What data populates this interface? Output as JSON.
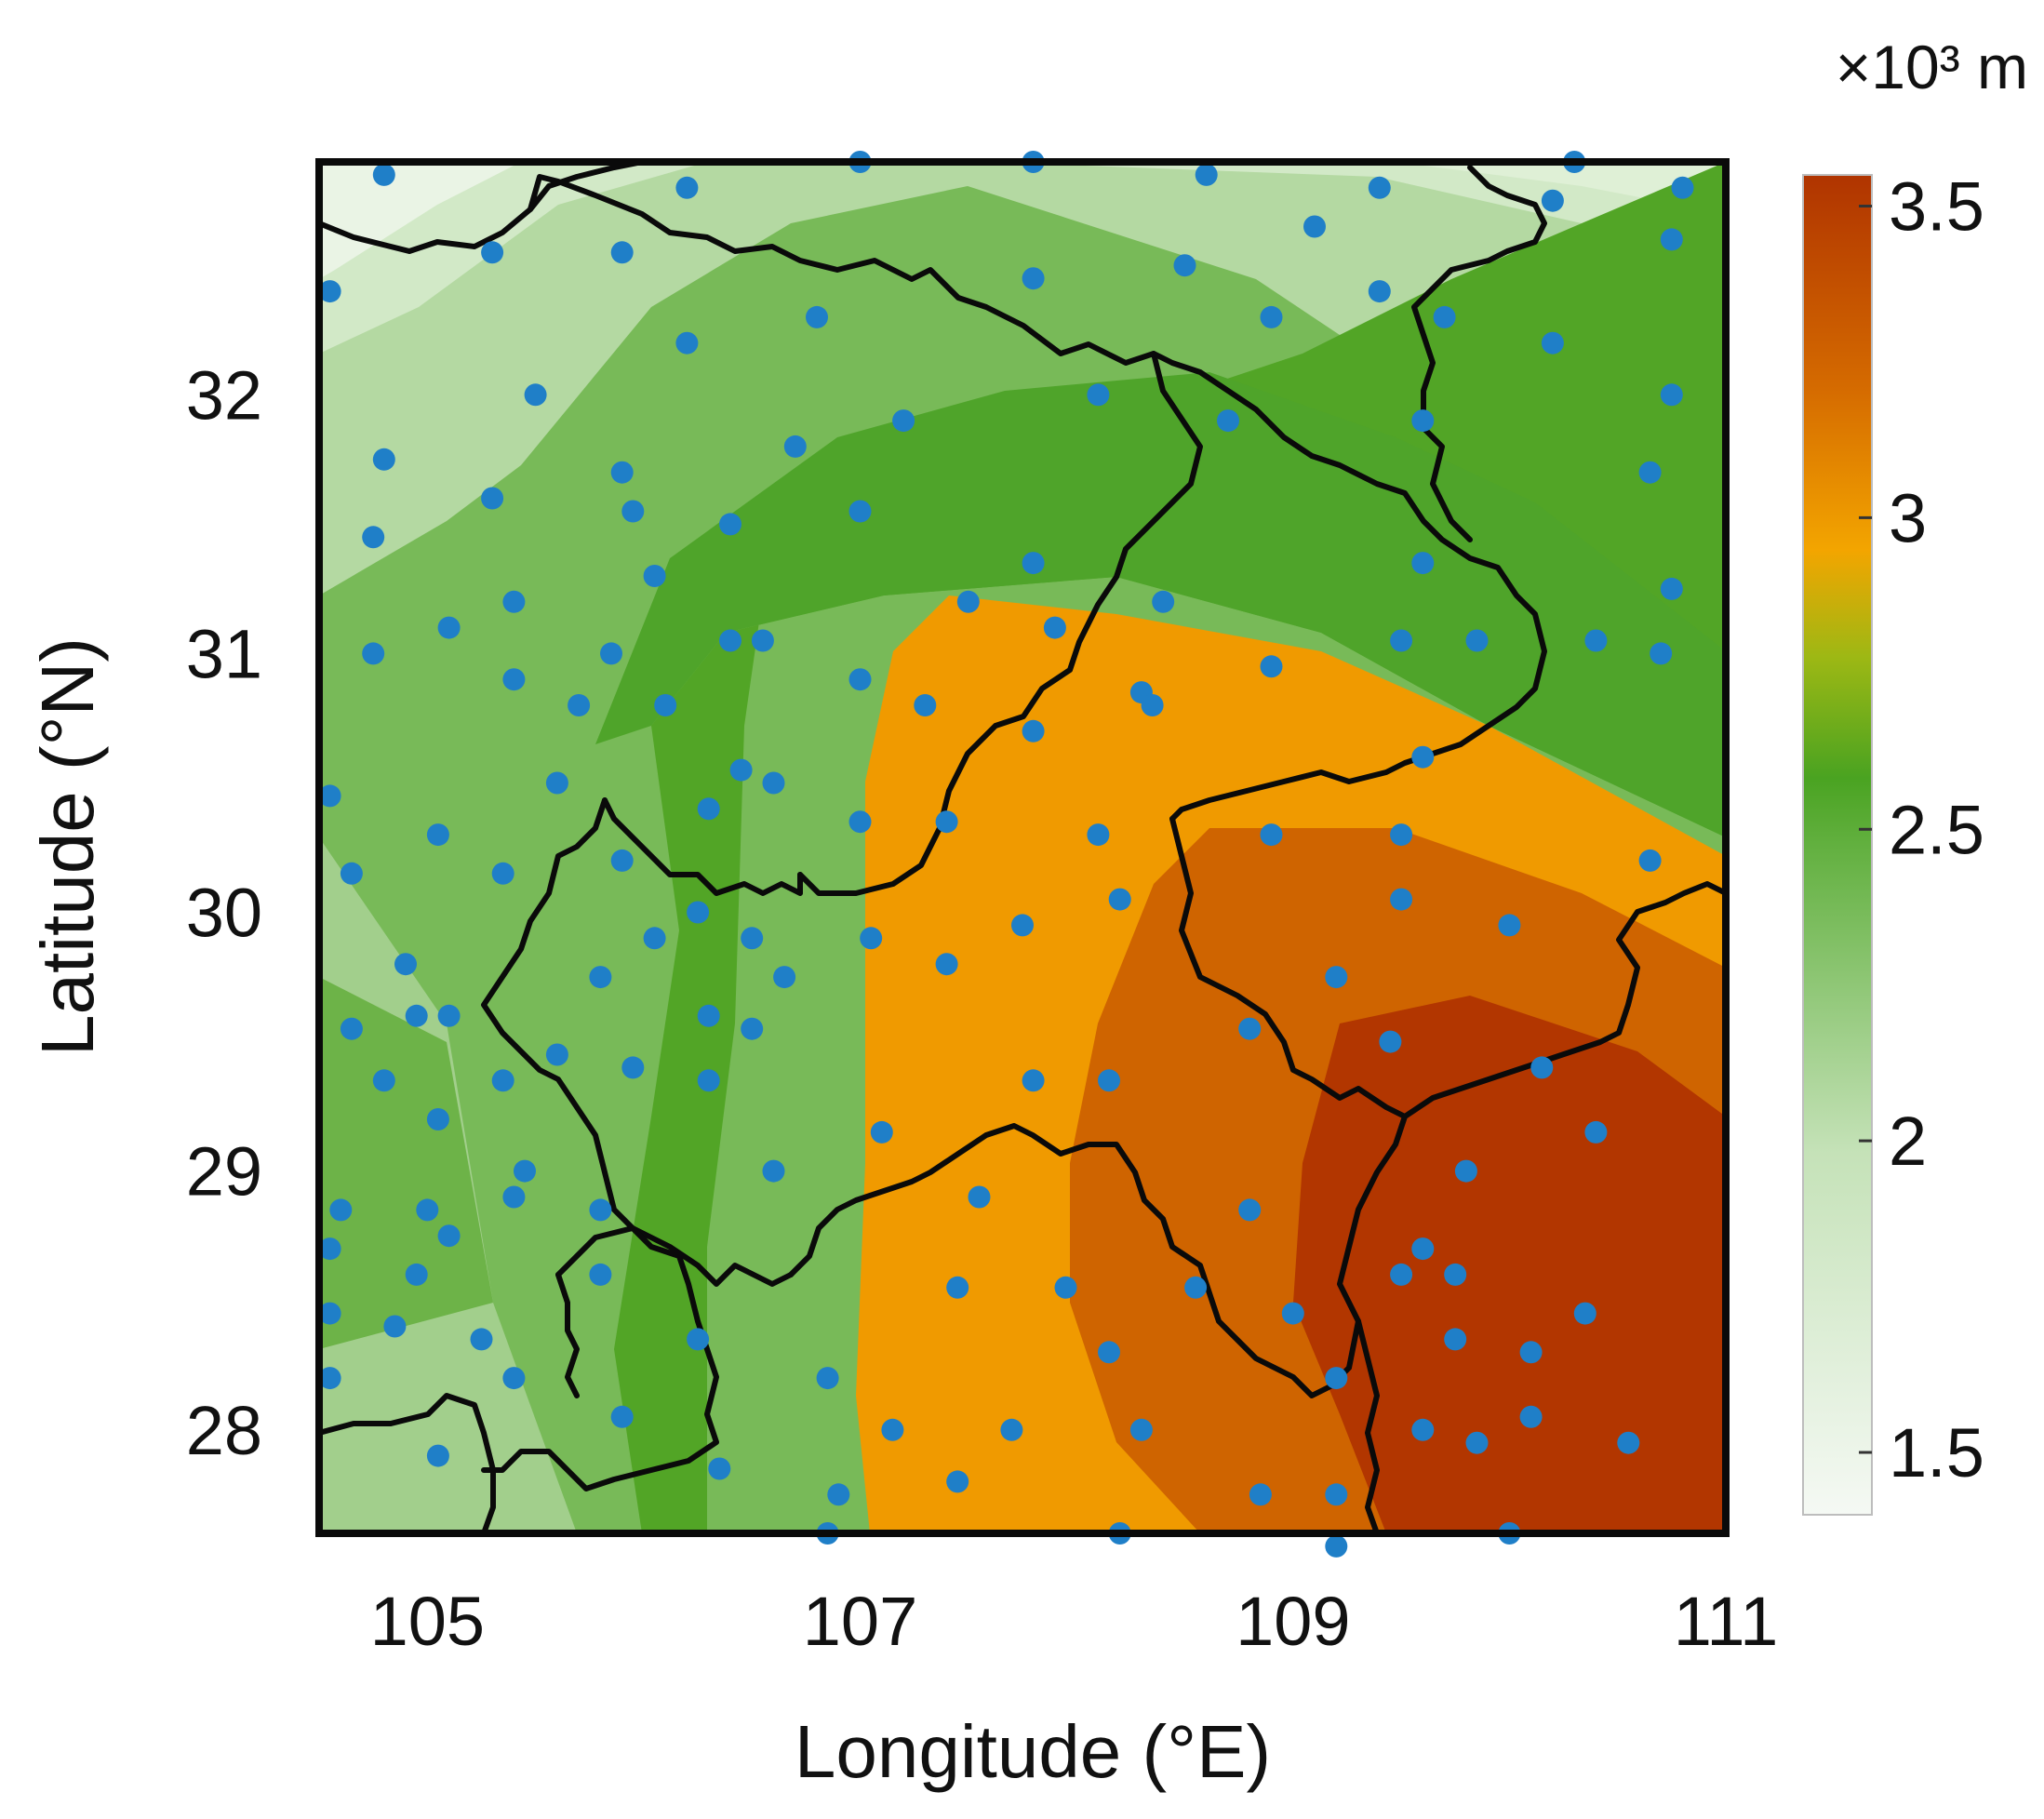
{
  "map": {
    "x_axis_label": "Longitude (°E)",
    "y_axis_label": "Latitude (°N)",
    "x_ticks": [
      "105",
      "107",
      "109",
      "111"
    ],
    "y_ticks": [
      "28",
      "29",
      "30",
      "31",
      "32"
    ],
    "lon_range": [
      104.5,
      111.0
    ],
    "lat_range": [
      27.6,
      32.9
    ],
    "x_tick_values": [
      105,
      107,
      109,
      111
    ],
    "y_tick_values": [
      28,
      29,
      30,
      31,
      32
    ]
  },
  "colorbar": {
    "unit": "×10³ m",
    "ticks": [
      "1.5",
      "2",
      "2.5",
      "3",
      "3.5"
    ],
    "tick_values": [
      1.5,
      2.0,
      2.5,
      3.0,
      3.5
    ],
    "range": [
      1.4,
      3.55
    ],
    "colors": [
      "#f4f8f3",
      "#c7e3bc",
      "#6fb64f",
      "#4fa325",
      "#f39a00",
      "#cc6300",
      "#b63800"
    ]
  },
  "stations": [
    [
      104.8,
      32.85
    ],
    [
      106.2,
      32.8
    ],
    [
      107.0,
      32.9
    ],
    [
      107.8,
      32.9
    ],
    [
      108.6,
      32.85
    ],
    [
      109.4,
      32.8
    ],
    [
      110.3,
      32.9
    ],
    [
      110.8,
      32.8
    ],
    [
      105.3,
      32.55
    ],
    [
      105.9,
      32.55
    ],
    [
      109.1,
      32.65
    ],
    [
      110.2,
      32.75
    ],
    [
      110.75,
      32.6
    ],
    [
      104.55,
      32.4
    ],
    [
      106.8,
      32.3
    ],
    [
      107.8,
      32.45
    ],
    [
      108.5,
      32.5
    ],
    [
      108.9,
      32.3
    ],
    [
      109.4,
      32.4
    ],
    [
      109.7,
      32.3
    ],
    [
      110.2,
      32.2
    ],
    [
      106.2,
      32.2
    ],
    [
      108.1,
      32.0
    ],
    [
      110.75,
      32.0
    ],
    [
      105.5,
      32.0
    ],
    [
      107.2,
      31.9
    ],
    [
      106.7,
      31.8
    ],
    [
      108.7,
      31.9
    ],
    [
      109.6,
      31.9
    ],
    [
      104.8,
      31.75
    ],
    [
      105.9,
      31.7
    ],
    [
      110.65,
      31.7
    ],
    [
      105.3,
      31.6
    ],
    [
      105.95,
      31.55
    ],
    [
      106.4,
      31.5
    ],
    [
      107.0,
      31.55
    ],
    [
      104.75,
      31.45
    ],
    [
      107.8,
      31.35
    ],
    [
      109.6,
      31.35
    ],
    [
      106.05,
      31.3
    ],
    [
      105.4,
      31.2
    ],
    [
      107.5,
      31.2
    ],
    [
      108.4,
      31.2
    ],
    [
      110.75,
      31.25
    ],
    [
      105.1,
      31.1
    ],
    [
      104.75,
      31.0
    ],
    [
      105.85,
      31.0
    ],
    [
      106.4,
      31.05
    ],
    [
      106.55,
      31.05
    ],
    [
      107.9,
      31.1
    ],
    [
      109.5,
      31.05
    ],
    [
      109.85,
      31.05
    ],
    [
      110.4,
      31.05
    ],
    [
      110.7,
      31.0
    ],
    [
      108.9,
      30.95
    ],
    [
      105.4,
      30.9
    ],
    [
      107.0,
      30.9
    ],
    [
      105.7,
      30.8
    ],
    [
      106.1,
      30.8
    ],
    [
      107.3,
      30.8
    ],
    [
      108.3,
      30.85
    ],
    [
      108.35,
      30.8
    ],
    [
      107.8,
      30.7
    ],
    [
      109.6,
      30.6
    ],
    [
      106.45,
      30.55
    ],
    [
      105.6,
      30.5
    ],
    [
      106.6,
      30.5
    ],
    [
      104.55,
      30.45
    ],
    [
      106.3,
      30.4
    ],
    [
      107.0,
      30.35
    ],
    [
      107.4,
      30.35
    ],
    [
      108.1,
      30.3
    ],
    [
      108.9,
      30.3
    ],
    [
      109.5,
      30.3
    ],
    [
      105.05,
      30.3
    ],
    [
      105.9,
      30.2
    ],
    [
      110.65,
      30.2
    ],
    [
      104.65,
      30.15
    ],
    [
      105.35,
      30.15
    ],
    [
      106.25,
      30.0
    ],
    [
      108.2,
      30.05
    ],
    [
      109.5,
      30.05
    ],
    [
      110.0,
      29.95
    ],
    [
      106.05,
      29.9
    ],
    [
      106.5,
      29.9
    ],
    [
      107.05,
      29.9
    ],
    [
      107.75,
      29.95
    ],
    [
      104.9,
      29.8
    ],
    [
      107.4,
      29.8
    ],
    [
      106.65,
      29.75
    ],
    [
      105.8,
      29.75
    ],
    [
      109.2,
      29.75
    ],
    [
      104.95,
      29.6
    ],
    [
      105.1,
      29.6
    ],
    [
      106.3,
      29.6
    ],
    [
      106.5,
      29.55
    ],
    [
      104.65,
      29.55
    ],
    [
      108.8,
      29.55
    ],
    [
      109.45,
      29.5
    ],
    [
      105.6,
      29.45
    ],
    [
      105.95,
      29.4
    ],
    [
      104.8,
      29.35
    ],
    [
      105.35,
      29.35
    ],
    [
      106.3,
      29.35
    ],
    [
      107.8,
      29.35
    ],
    [
      108.15,
      29.35
    ],
    [
      110.15,
      29.4
    ],
    [
      105.05,
      29.2
    ],
    [
      107.1,
      29.15
    ],
    [
      110.4,
      29.15
    ],
    [
      106.6,
      29.0
    ],
    [
      105.45,
      29.0
    ],
    [
      109.8,
      29.0
    ],
    [
      105.4,
      28.9
    ],
    [
      107.55,
      28.9
    ],
    [
      104.6,
      28.85
    ],
    [
      105.0,
      28.85
    ],
    [
      105.8,
      28.85
    ],
    [
      108.8,
      28.85
    ],
    [
      104.55,
      28.7
    ],
    [
      105.1,
      28.75
    ],
    [
      109.6,
      28.7
    ],
    [
      104.95,
      28.6
    ],
    [
      105.8,
      28.6
    ],
    [
      109.5,
      28.6
    ],
    [
      109.75,
      28.6
    ],
    [
      107.45,
      28.55
    ],
    [
      107.95,
      28.55
    ],
    [
      108.55,
      28.55
    ],
    [
      104.55,
      28.45
    ],
    [
      104.85,
      28.4
    ],
    [
      109.0,
      28.45
    ],
    [
      110.35,
      28.45
    ],
    [
      106.25,
      28.35
    ],
    [
      105.25,
      28.35
    ],
    [
      108.15,
      28.3
    ],
    [
      109.75,
      28.35
    ],
    [
      110.1,
      28.3
    ],
    [
      104.55,
      28.2
    ],
    [
      105.4,
      28.2
    ],
    [
      106.85,
      28.2
    ],
    [
      109.2,
      28.2
    ],
    [
      105.9,
      28.05
    ],
    [
      107.15,
      28.0
    ],
    [
      107.7,
      28.0
    ],
    [
      108.3,
      28.0
    ],
    [
      110.1,
      28.05
    ],
    [
      109.6,
      28.0
    ],
    [
      109.85,
      27.95
    ],
    [
      110.55,
      27.95
    ],
    [
      105.05,
      27.9
    ],
    [
      106.35,
      27.85
    ],
    [
      107.45,
      27.8
    ],
    [
      108.85,
      27.75
    ],
    [
      109.2,
      27.75
    ],
    [
      106.9,
      27.75
    ],
    [
      108.2,
      27.6
    ],
    [
      106.85,
      27.6
    ],
    [
      109.2,
      27.55
    ],
    [
      110.0,
      27.6
    ]
  ]
}
